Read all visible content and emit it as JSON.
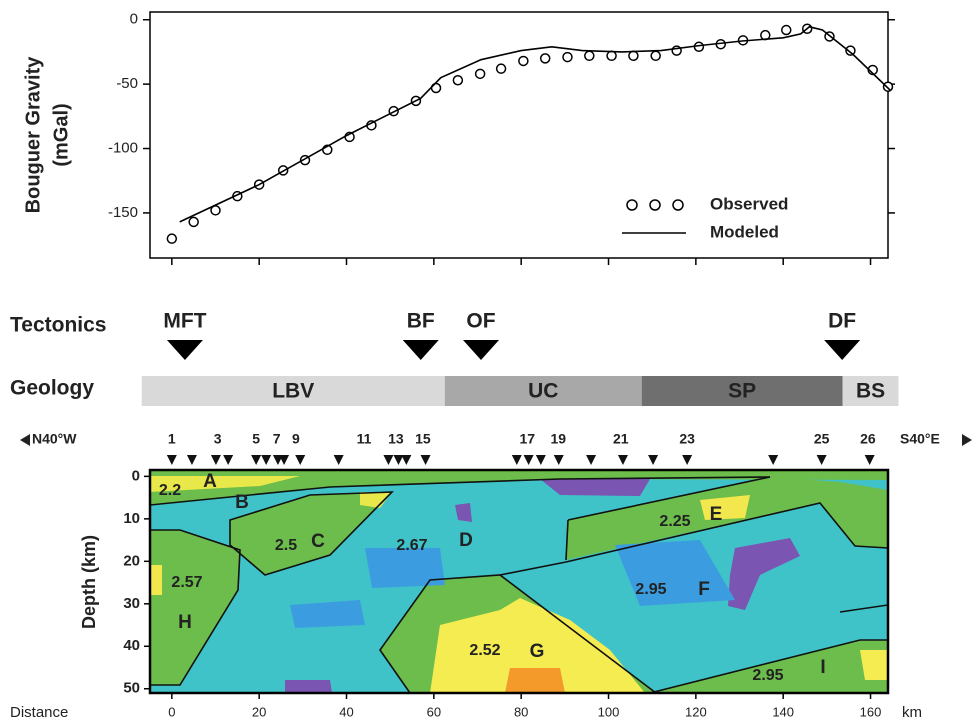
{
  "chart_data": [
    {
      "type": "line",
      "ylabel": "Bouguer Gravity",
      "ylabel_unit": "(mGal)",
      "xlim": [
        -5,
        164
      ],
      "ylim": [
        -185,
        6
      ],
      "yticks": [
        0,
        -50,
        -100,
        -150
      ],
      "series": [
        {
          "name": "Observed",
          "marker": "circle",
          "color": "#000000",
          "x": [
            0,
            5,
            10,
            15,
            20,
            25.5,
            30.5,
            35.6,
            40.7,
            45.7,
            50.8,
            55.9,
            60.5,
            65.5,
            70.6,
            75.4,
            80.5,
            85.5,
            90.6,
            95.6,
            100.7,
            105.7,
            110.8,
            115.6,
            120.7,
            125.7,
            130.8,
            135.9,
            140.7,
            145.5,
            150.6,
            155.4,
            160.5,
            164
          ],
          "values": [
            -170,
            -157,
            -148,
            -137,
            -128,
            -117,
            -109,
            -101,
            -91,
            -82,
            -71,
            -63,
            -53,
            -47,
            -42,
            -38,
            -32,
            -30,
            -29,
            -28,
            -28,
            -28,
            -28,
            -24,
            -21,
            -19,
            -16,
            -12,
            -8,
            -7,
            -13,
            -24,
            -39,
            -52
          ]
        },
        {
          "name": "Modeled",
          "color": "#000000",
          "x": [
            1.8,
            20,
            40,
            57,
            61.6,
            70.8,
            80,
            87,
            94,
            103,
            112,
            121,
            130.6,
            140,
            144,
            146,
            149,
            156,
            164.6
          ],
          "values": [
            -157,
            -128,
            -90,
            -61,
            -45,
            -31,
            -24,
            -21,
            -24,
            -25,
            -24,
            -20,
            -16.5,
            -14,
            -11,
            -5.5,
            -8,
            -27,
            -55
          ]
        }
      ]
    },
    {
      "type": "cross-section",
      "xlabel": "Distance",
      "xunit": "km",
      "ylabel": "Depth (km)",
      "xlim": [
        -5,
        164
      ],
      "ylim": [
        -1.5,
        51
      ],
      "xticks": [
        0,
        20,
        40,
        60,
        80,
        100,
        120,
        140,
        160
      ],
      "yticks": [
        0,
        10,
        20,
        30,
        40,
        50
      ],
      "direction_left": "N40°W",
      "direction_right": "S40°E",
      "station_numbers": [
        1,
        3,
        5,
        7,
        9,
        11,
        13,
        15,
        17,
        19,
        21,
        23,
        25,
        26
      ],
      "station_number_x": [
        0,
        10.5,
        19.3,
        24,
        28.4,
        44,
        51.3,
        57.5,
        81.4,
        88.5,
        102.8,
        118,
        148.8,
        159.4
      ],
      "station_x": [
        0,
        4.6,
        10.1,
        12.9,
        19.3,
        21.6,
        24.3,
        25.7,
        29.4,
        38.2,
        49.6,
        51.9,
        53.7,
        58.1,
        79,
        81.7,
        84.5,
        88.6,
        96,
        103.3,
        110.2,
        118,
        137.7,
        148.8,
        159.8
      ],
      "bodies": [
        "A",
        "B",
        "C",
        "D",
        "E",
        "F",
        "G",
        "H",
        "I"
      ],
      "densities": [
        2.2,
        2.5,
        2.67,
        2.25,
        2.57,
        2.95,
        2.52,
        2.95
      ]
    }
  ],
  "tectonics": {
    "label": "Tectonics",
    "faults": [
      {
        "name": "MFT",
        "x": 3
      },
      {
        "name": "BF",
        "x": 57
      },
      {
        "name": "OF",
        "x": 70.8
      },
      {
        "name": "DF",
        "x": 153.5
      }
    ]
  },
  "geology": {
    "label": "Geology",
    "units": [
      {
        "name": "LBV",
        "start": -6.9,
        "end": 62.5,
        "color": "#d9d9d9"
      },
      {
        "name": "UC",
        "start": 62.5,
        "end": 107.6,
        "color": "#a8a8a8"
      },
      {
        "name": "SP",
        "start": 107.6,
        "end": 153.6,
        "color": "#6f6f6f"
      },
      {
        "name": "BS",
        "start": 153.6,
        "end": 166.4,
        "color": "#d9d9d9"
      }
    ]
  }
}
